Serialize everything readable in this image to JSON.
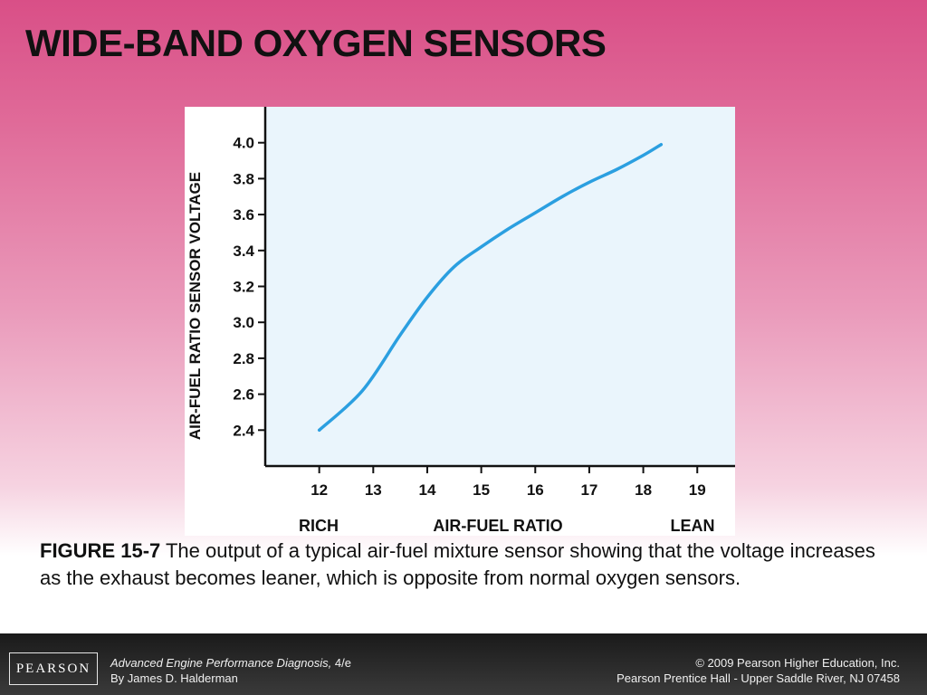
{
  "slide": {
    "title": "WIDE-BAND OXYGEN SENSORS"
  },
  "caption": {
    "figure_label": "FIGURE 15-7",
    "text": "The output of a typical air-fuel mixture sensor showing that the voltage increases as the exhaust becomes leaner, which is opposite from normal oxygen sensors."
  },
  "footer": {
    "logo": "PEARSON",
    "book_title": "Advanced Engine Performance Diagnosis,",
    "edition": "4/e",
    "author": "By James D. Halderman",
    "copyright": "© 2009 Pearson Higher Education, Inc.",
    "publisher": "Pearson Prentice Hall - Upper Saddle River, NJ 07458"
  },
  "chart_data": {
    "type": "line",
    "title": "",
    "xlabel": "AIR-FUEL RATIO",
    "xlabel_left": "RICH",
    "xlabel_right": "LEAN",
    "ylabel": "AIR-FUEL RATIO SENSOR VOLTAGE",
    "xlim": [
      11,
      19.7
    ],
    "ylim": [
      2.2,
      4.2
    ],
    "xticks": [
      12,
      13,
      14,
      15,
      16,
      17,
      18,
      19
    ],
    "yticks": [
      2.4,
      2.6,
      2.8,
      3.0,
      3.2,
      3.4,
      3.6,
      3.8,
      4.0
    ],
    "ytick_labels": [
      "2.4",
      "2.6",
      "2.8",
      "3.0",
      "3.2",
      "3.4",
      "3.6",
      "3.8",
      "4.0"
    ],
    "grid": false,
    "colors": {
      "line": "#2b9fe0",
      "plot_bg": "#eaf5fc",
      "axis": "#111111"
    },
    "series": [
      {
        "x": [
          12.0,
          12.8,
          13.5,
          14.0,
          14.5,
          15.0,
          15.5,
          16.0,
          16.5,
          17.0,
          17.5,
          18.0,
          18.33
        ],
        "values": [
          2.4,
          2.62,
          2.93,
          3.14,
          3.31,
          3.42,
          3.52,
          3.61,
          3.7,
          3.78,
          3.85,
          3.93,
          3.99
        ]
      }
    ]
  }
}
